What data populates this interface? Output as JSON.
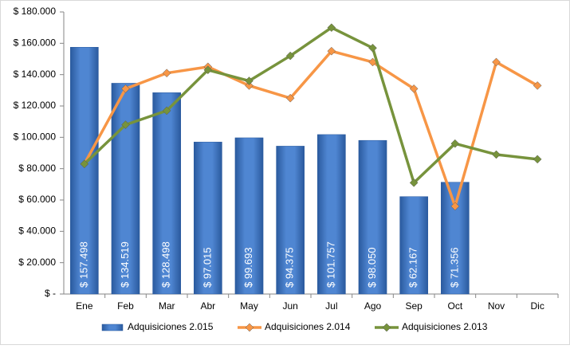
{
  "chart_data": {
    "type": "combo",
    "categories": [
      "Ene",
      "Feb",
      "Mar",
      "Abr",
      "May",
      "Jun",
      "Jul",
      "Ago",
      "Sep",
      "Oct",
      "Nov",
      "Dic"
    ],
    "series": [
      {
        "name": "Adquisiciones 2.015",
        "type": "bar",
        "color": "#3f77c4",
        "values": [
          157498,
          134519,
          128498,
          97015,
          99693,
          94375,
          101757,
          98050,
          62167,
          71356,
          null,
          null
        ],
        "value_labels": [
          "$ 157.498",
          "$ 134.519",
          "$ 128.498",
          "$ 97.015",
          "$ 99.693",
          "$ 94.375",
          "$ 101.757",
          "$ 98.050",
          "$ 62.167",
          "$ 71.356",
          null,
          null
        ]
      },
      {
        "name": "Adquisiciones 2.014",
        "type": "line",
        "color": "#f79646",
        "values": [
          83000,
          131000,
          141000,
          145000,
          133000,
          125000,
          155000,
          148000,
          131000,
          56000,
          148000,
          133000
        ]
      },
      {
        "name": "Adquisiciones 2.013",
        "type": "line",
        "color": "#77933c",
        "values": [
          83000,
          108000,
          117000,
          143000,
          136000,
          152000,
          170000,
          157000,
          71000,
          96000,
          89000,
          86000
        ]
      }
    ],
    "ylim": [
      0,
      180000
    ],
    "yticks": [
      {
        "value": 0,
        "label": "$ -"
      },
      {
        "value": 20000,
        "label": "$ 20.000"
      },
      {
        "value": 40000,
        "label": "$ 40.000"
      },
      {
        "value": 60000,
        "label": "$ 60.000"
      },
      {
        "value": 80000,
        "label": "$ 80.000"
      },
      {
        "value": 100000,
        "label": "$ 100.000"
      },
      {
        "value": 120000,
        "label": "$ 120.000"
      },
      {
        "value": 140000,
        "label": "$ 140.000"
      },
      {
        "value": 160000,
        "label": "$ 160.000"
      },
      {
        "value": 180000,
        "label": "$ 180.000"
      }
    ],
    "legend": "bottom"
  }
}
